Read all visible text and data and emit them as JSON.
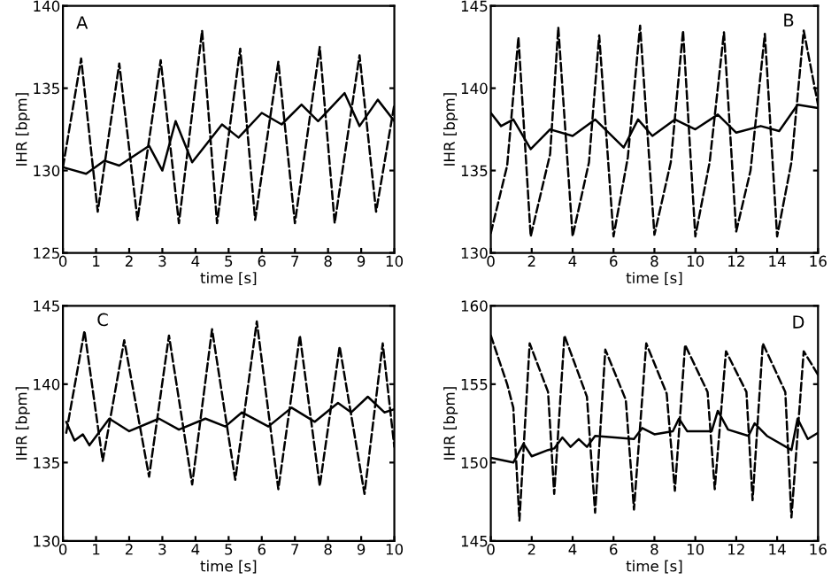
{
  "chart_data": [
    {
      "type": "line",
      "annotations": [
        "A"
      ],
      "xlabel": "time [s]",
      "ylabel": "IHR [bpm]",
      "xlim": [
        0,
        10
      ],
      "ylim": [
        125,
        140
      ],
      "xticks": [
        0,
        1,
        2,
        3,
        4,
        5,
        6,
        7,
        8,
        9,
        10
      ],
      "yticks": [
        125,
        130,
        135,
        140
      ],
      "grid": false,
      "legend": false,
      "series": [
        {
          "color": "#000000",
          "line_style": "dashed",
          "x": [
            0,
            0.55,
            1.05,
            1.7,
            2.25,
            2.95,
            3.5,
            4.2,
            4.65,
            5.35,
            5.8,
            6.5,
            7.0,
            7.75,
            8.2,
            8.95,
            9.45,
            10
          ],
          "values": [
            130.2,
            136.8,
            127.5,
            136.5,
            127,
            136.7,
            126.8,
            138.5,
            126.8,
            137.4,
            127,
            136.6,
            126.8,
            137.5,
            126.8,
            137,
            127.5,
            134
          ]
        },
        {
          "color": "#000000",
          "line_style": "solid",
          "x": [
            0,
            0.7,
            1.25,
            1.7,
            2.6,
            3.0,
            3.4,
            3.9,
            4.8,
            5.3,
            6.0,
            6.6,
            7.2,
            7.7,
            8.5,
            8.95,
            9.5,
            10
          ],
          "values": [
            130.2,
            129.8,
            130.6,
            130.3,
            131.5,
            130,
            133,
            130.5,
            132.8,
            132,
            133.5,
            132.8,
            134,
            133,
            134.7,
            132.7,
            134.3,
            133
          ]
        }
      ]
    },
    {
      "type": "line",
      "annotations": [
        "B"
      ],
      "xlabel": "time [s]",
      "ylabel": "IHR [bpm]",
      "xlim": [
        0,
        16
      ],
      "ylim": [
        130,
        145
      ],
      "xticks": [
        0,
        2,
        4,
        6,
        8,
        10,
        12,
        14,
        16
      ],
      "yticks": [
        130,
        135,
        140,
        145
      ],
      "grid": false,
      "legend": false,
      "series": [
        {
          "color": "#000000",
          "line_style": "dashed",
          "x": [
            0,
            0.8,
            1.35,
            1.95,
            2.9,
            3.3,
            4.0,
            4.8,
            5.3,
            6.0,
            6.7,
            7.3,
            8.0,
            8.8,
            9.4,
            10.0,
            10.7,
            11.4,
            12.0,
            12.7,
            13.4,
            14.0,
            14.7,
            15.3,
            16
          ],
          "values": [
            131.2,
            135.3,
            143.1,
            131,
            136,
            143.7,
            131,
            135.5,
            143.2,
            131,
            135.8,
            143.8,
            131.1,
            135.5,
            143.5,
            131,
            135.5,
            143.4,
            131.3,
            135,
            143.3,
            131,
            135.5,
            143.5,
            139
          ]
        },
        {
          "color": "#000000",
          "line_style": "solid",
          "x": [
            0,
            0.5,
            1.1,
            1.95,
            2.9,
            4,
            5.1,
            6.5,
            7.2,
            7.9,
            9.0,
            10,
            11.1,
            12,
            13.2,
            14.1,
            15.0,
            16
          ],
          "values": [
            138.5,
            137.7,
            138.1,
            136.3,
            137.5,
            137.1,
            138.1,
            136.4,
            138.1,
            137.1,
            138.1,
            137.5,
            138.4,
            137.3,
            137.7,
            137.4,
            139,
            138.8
          ]
        }
      ]
    },
    {
      "type": "line",
      "annotations": [
        "C"
      ],
      "xlabel": "time [s]",
      "ylabel": "IHR [bpm]",
      "xlim": [
        0,
        10
      ],
      "ylim": [
        130,
        145
      ],
      "xticks": [
        0,
        1,
        2,
        3,
        4,
        5,
        6,
        7,
        8,
        9,
        10
      ],
      "yticks": [
        130,
        135,
        140,
        145
      ],
      "grid": false,
      "legend": false,
      "series": [
        {
          "color": "#000000",
          "line_style": "dashed",
          "x": [
            0.1,
            0.65,
            1.2,
            1.85,
            2.6,
            3.2,
            3.9,
            4.5,
            5.2,
            5.85,
            6.5,
            7.15,
            7.75,
            8.35,
            9.1,
            9.65,
            10
          ],
          "values": [
            136.9,
            143.4,
            135.1,
            142.8,
            134.1,
            143.1,
            133.6,
            143.5,
            133.9,
            144,
            133.3,
            143.1,
            133.5,
            142.4,
            133,
            142.6,
            136
          ]
        },
        {
          "color": "#000000",
          "line_style": "solid",
          "x": [
            0.1,
            0.35,
            0.6,
            0.8,
            1.4,
            2.0,
            2.9,
            3.5,
            4.3,
            4.9,
            5.4,
            6.2,
            6.9,
            7.6,
            8.3,
            8.7,
            9.2,
            9.7,
            10
          ],
          "values": [
            137.6,
            136.4,
            136.8,
            136.1,
            137.8,
            137,
            137.8,
            137.1,
            137.8,
            137.3,
            138.2,
            137.3,
            138.5,
            137.6,
            138.8,
            138.2,
            139.2,
            138.2,
            138.4
          ]
        }
      ]
    },
    {
      "type": "line",
      "annotations": [
        "D"
      ],
      "xlabel": "time [s]",
      "ylabel": "IHR [bpm]",
      "xlim": [
        0,
        16
      ],
      "ylim": [
        145,
        160
      ],
      "xticks": [
        0,
        2,
        4,
        6,
        8,
        10,
        12,
        14,
        16
      ],
      "yticks": [
        145,
        150,
        155,
        160
      ],
      "grid": false,
      "legend": false,
      "series": [
        {
          "color": "#000000",
          "line_style": "dashed",
          "x": [
            0,
            0.8,
            1.1,
            1.4,
            1.9,
            2.8,
            3.1,
            3.6,
            4.7,
            5.1,
            5.6,
            6.6,
            7.0,
            7.6,
            8.6,
            9.0,
            9.5,
            10.6,
            10.95,
            11.5,
            12.5,
            12.8,
            13.3,
            14.4,
            14.7,
            15.3,
            16
          ],
          "values": [
            158.1,
            155,
            153.5,
            146.3,
            157.6,
            154.5,
            148,
            158.1,
            154.2,
            146.8,
            157.2,
            154,
            147,
            157.6,
            154.4,
            148.2,
            157.5,
            154.5,
            148.3,
            157.1,
            154.5,
            147.6,
            157.6,
            154.5,
            146.5,
            157.1,
            155.6
          ]
        },
        {
          "color": "#000000",
          "line_style": "solid",
          "x": [
            0,
            1.1,
            1.6,
            2.0,
            2.8,
            3.1,
            3.5,
            3.9,
            4.3,
            4.7,
            5.1,
            7.0,
            7.4,
            8.0,
            8.9,
            9.2,
            9.6,
            10.8,
            11.1,
            11.6,
            12.6,
            12.9,
            13.5,
            14.7,
            15.0,
            15.5,
            16
          ],
          "values": [
            150.3,
            150,
            151.2,
            150.4,
            150.8,
            150.9,
            151.6,
            151,
            151.5,
            151,
            151.7,
            151.5,
            152.2,
            151.8,
            152,
            152.8,
            152,
            152,
            153.3,
            152.1,
            151.7,
            152.5,
            151.7,
            150.8,
            152.8,
            151.5,
            151.9
          ]
        }
      ]
    }
  ]
}
